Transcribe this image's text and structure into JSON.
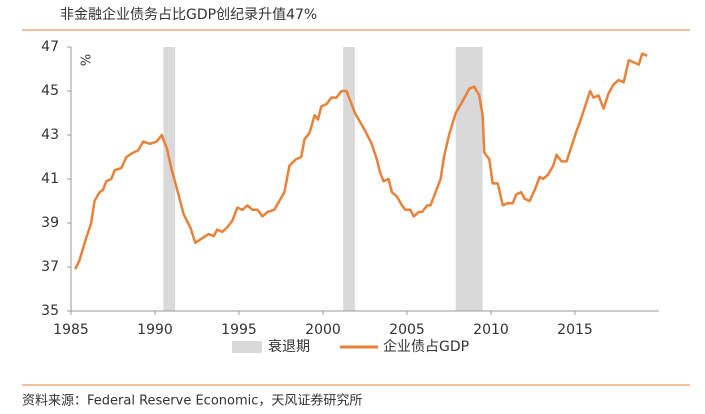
{
  "chart_data": {
    "type": "line",
    "title": "非金融企业债务占比GDP创纪录升值47%",
    "y_label": "%",
    "source": "资料来源：Federal Reserve Economic，天风证券研究所",
    "xlim": [
      1985,
      2020
    ],
    "xticks": [
      1985,
      1990,
      1995,
      2000,
      2005,
      2010,
      2015
    ],
    "ylim": [
      35,
      47
    ],
    "yticks": [
      35,
      37,
      39,
      41,
      43,
      45,
      47
    ],
    "recessions": {
      "name": "衰退期",
      "color": "#d9d9d9",
      "spans": [
        [
          1990.5,
          1991.2
        ],
        [
          2001.2,
          2001.9
        ],
        [
          2007.9,
          2009.5
        ]
      ]
    },
    "legend": "bottom",
    "series": [
      {
        "name": "企业债占GDP",
        "color": "#e8823a",
        "x": [
          1985.25,
          1985.5,
          1985.9,
          1986.2,
          1986.4,
          1986.7,
          1986.9,
          1987.1,
          1987.4,
          1987.6,
          1988.0,
          1988.3,
          1988.7,
          1989.0,
          1989.3,
          1989.7,
          1990.1,
          1990.4,
          1990.7,
          1991.0,
          1991.4,
          1991.7,
          1992.1,
          1992.4,
          1992.8,
          1993.2,
          1993.5,
          1993.7,
          1994.0,
          1994.3,
          1994.6,
          1994.9,
          1995.2,
          1995.5,
          1995.8,
          1996.1,
          1996.4,
          1996.7,
          1997.1,
          1997.4,
          1997.7,
          1998.0,
          1998.4,
          1998.7,
          1998.9,
          1999.2,
          1999.5,
          1999.7,
          1999.9,
          2000.2,
          2000.5,
          2000.8,
          2001.1,
          2001.4,
          2001.6,
          2001.9,
          2002.2,
          2002.5,
          2002.9,
          2003.2,
          2003.4,
          2003.6,
          2003.9,
          2004.1,
          2004.4,
          2004.7,
          2004.9,
          2005.2,
          2005.4,
          2005.7,
          2005.9,
          2006.2,
          2006.4,
          2006.7,
          2007.0,
          2007.2,
          2007.5,
          2007.9,
          2008.2,
          2008.5,
          2008.7,
          2009.0,
          2009.3,
          2009.5,
          2009.6,
          2009.9,
          2010.1,
          2010.4,
          2010.7,
          2011.0,
          2011.3,
          2011.5,
          2011.8,
          2012.0,
          2012.3,
          2012.6,
          2012.9,
          2013.1,
          2013.4,
          2013.7,
          2013.9,
          2014.2,
          2014.5,
          2014.8,
          2015.1,
          2015.3,
          2015.6,
          2015.9,
          2016.1,
          2016.4,
          2016.7,
          2017.0,
          2017.3,
          2017.6,
          2017.9,
          2018.2,
          2018.5,
          2018.8,
          2019.0,
          2019.3
        ],
        "values": [
          36.9,
          37.3,
          38.3,
          39.0,
          40.0,
          40.4,
          40.5,
          40.9,
          41.0,
          41.4,
          41.5,
          42.0,
          42.2,
          42.3,
          42.7,
          42.6,
          42.7,
          43.0,
          42.4,
          41.4,
          40.3,
          39.4,
          38.8,
          38.1,
          38.3,
          38.5,
          38.4,
          38.7,
          38.6,
          38.8,
          39.1,
          39.7,
          39.6,
          39.8,
          39.6,
          39.6,
          39.3,
          39.5,
          39.6,
          40.0,
          40.4,
          41.6,
          41.9,
          42.0,
          42.8,
          43.1,
          43.9,
          43.7,
          44.3,
          44.4,
          44.7,
          44.7,
          45.0,
          45.0,
          44.6,
          44.0,
          43.6,
          43.2,
          42.6,
          41.9,
          41.3,
          40.9,
          41.0,
          40.4,
          40.2,
          39.8,
          39.6,
          39.6,
          39.3,
          39.5,
          39.5,
          39.8,
          39.8,
          40.4,
          41.0,
          42.0,
          43.0,
          44.0,
          44.4,
          44.8,
          45.1,
          45.2,
          44.8,
          43.9,
          42.2,
          41.9,
          40.8,
          40.8,
          39.8,
          39.9,
          39.9,
          40.3,
          40.4,
          40.1,
          40.0,
          40.5,
          41.1,
          41.0,
          41.2,
          41.6,
          42.1,
          41.8,
          41.8,
          42.5,
          43.2,
          43.6,
          44.3,
          45.0,
          44.7,
          44.8,
          44.2,
          44.9,
          45.3,
          45.5,
          45.4,
          46.4,
          46.3,
          46.2,
          46.7,
          46.6
        ]
      }
    ]
  }
}
